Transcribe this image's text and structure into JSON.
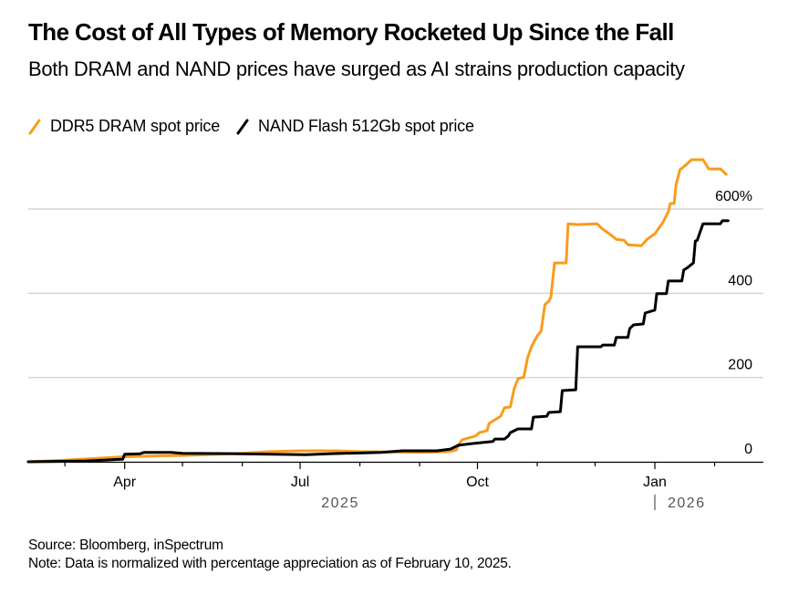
{
  "header": {
    "title": "The Cost of All Types of Memory Rocketed Up Since the Fall",
    "subtitle": "Both DRAM and NAND prices have surged as AI strains production capacity"
  },
  "legend": [
    {
      "label": "DDR5 DRAM spot price",
      "color": "#F89C1C"
    },
    {
      "label": "NAND Flash 512Gb spot price",
      "color": "#000000"
    }
  ],
  "footer": {
    "source": "Source: Bloomberg, inSpectrum",
    "note": "Note: Data is normalized with percentage appreciation as of February 10, 2025."
  },
  "chart_data": {
    "type": "line",
    "title": "The Cost of All Types of Memory Rocketed Up Since the Fall",
    "subtitle": "Both DRAM and NAND prices have surged as AI strains production capacity",
    "xlabel": "",
    "ylabel": "",
    "x_range": [
      "2025-02-10",
      "2026-02-28"
    ],
    "ylim": [
      0,
      700
    ],
    "y_ticks": [
      {
        "value": 0,
        "label": "0"
      },
      {
        "value": 200,
        "label": "200"
      },
      {
        "value": 400,
        "label": "400"
      },
      {
        "value": 600,
        "label": "600%"
      }
    ],
    "x_ticks": [
      {
        "date": "2025-03-01",
        "label": ""
      },
      {
        "date": "2025-04-01",
        "label": "Apr"
      },
      {
        "date": "2025-05-01",
        "label": ""
      },
      {
        "date": "2025-06-01",
        "label": ""
      },
      {
        "date": "2025-07-01",
        "label": "Jul"
      },
      {
        "date": "2025-08-01",
        "label": ""
      },
      {
        "date": "2025-09-01",
        "label": ""
      },
      {
        "date": "2025-10-01",
        "label": "Oct"
      },
      {
        "date": "2025-11-01",
        "label": ""
      },
      {
        "date": "2025-12-01",
        "label": ""
      },
      {
        "date": "2026-01-01",
        "label": "Jan"
      },
      {
        "date": "2026-02-01",
        "label": ""
      }
    ],
    "year_labels": [
      {
        "date": "2025-07-01",
        "label": "2025",
        "separator": false
      },
      {
        "date": "2026-01-01",
        "label": "2026",
        "separator": true
      }
    ],
    "grid": true,
    "legend_position": "top-left",
    "y_axis_side": "right",
    "series": [
      {
        "name": "DDR5 DRAM spot price",
        "color": "#F89C1C",
        "points": [
          [
            "2025-02-10",
            0
          ],
          [
            "2025-03-01",
            4
          ],
          [
            "2025-04-01",
            12
          ],
          [
            "2025-04-20",
            14
          ],
          [
            "2025-05-01",
            15
          ],
          [
            "2025-06-01",
            20
          ],
          [
            "2025-06-15",
            24
          ],
          [
            "2025-07-01",
            26
          ],
          [
            "2025-07-20",
            26
          ],
          [
            "2025-08-01",
            24
          ],
          [
            "2025-08-20",
            23
          ],
          [
            "2025-09-01",
            22
          ],
          [
            "2025-09-16",
            24
          ],
          [
            "2025-09-20",
            28
          ],
          [
            "2025-09-21",
            39
          ],
          [
            "2025-09-23",
            52
          ],
          [
            "2025-09-30",
            61
          ],
          [
            "2025-10-02",
            69
          ],
          [
            "2025-10-06",
            74
          ],
          [
            "2025-10-07",
            91
          ],
          [
            "2025-10-13",
            108
          ],
          [
            "2025-10-15",
            128
          ],
          [
            "2025-10-18",
            130
          ],
          [
            "2025-10-20",
            173
          ],
          [
            "2025-10-22",
            197
          ],
          [
            "2025-10-25",
            201
          ],
          [
            "2025-10-27",
            247
          ],
          [
            "2025-10-29",
            273
          ],
          [
            "2025-11-01",
            299
          ],
          [
            "2025-11-03",
            310
          ],
          [
            "2025-11-05",
            373
          ],
          [
            "2025-11-07",
            381
          ],
          [
            "2025-11-08",
            390
          ],
          [
            "2025-11-10",
            472
          ],
          [
            "2025-11-16",
            472
          ],
          [
            "2025-11-17",
            565
          ],
          [
            "2025-11-22",
            563
          ],
          [
            "2025-12-02",
            565
          ],
          [
            "2025-12-05",
            552
          ],
          [
            "2025-12-09",
            539
          ],
          [
            "2025-12-12",
            528
          ],
          [
            "2025-12-16",
            526
          ],
          [
            "2025-12-18",
            515
          ],
          [
            "2025-12-25",
            513
          ],
          [
            "2025-12-28",
            528
          ],
          [
            "2026-01-01",
            541
          ],
          [
            "2026-01-05",
            567
          ],
          [
            "2026-01-08",
            593
          ],
          [
            "2026-01-09",
            613
          ],
          [
            "2026-01-11",
            613
          ],
          [
            "2026-01-12",
            658
          ],
          [
            "2026-01-14",
            693
          ],
          [
            "2026-01-17",
            704
          ],
          [
            "2026-01-20",
            717
          ],
          [
            "2026-01-26",
            717
          ],
          [
            "2026-01-29",
            695
          ],
          [
            "2026-02-04",
            695
          ],
          [
            "2026-02-07",
            682
          ]
        ]
      },
      {
        "name": "NAND Flash 512Gb spot price",
        "color": "#000000",
        "points": [
          [
            "2025-02-10",
            0
          ],
          [
            "2025-03-12",
            2
          ],
          [
            "2025-03-31",
            6
          ],
          [
            "2025-04-01",
            18
          ],
          [
            "2025-04-09",
            19
          ],
          [
            "2025-04-11",
            22
          ],
          [
            "2025-04-25",
            22
          ],
          [
            "2025-05-01",
            20
          ],
          [
            "2025-05-30",
            19
          ],
          [
            "2025-07-04",
            17
          ],
          [
            "2025-07-16",
            19
          ],
          [
            "2025-08-12",
            22
          ],
          [
            "2025-08-23",
            26
          ],
          [
            "2025-09-10",
            26
          ],
          [
            "2025-09-17",
            30
          ],
          [
            "2025-09-21",
            39
          ],
          [
            "2025-09-28",
            43
          ],
          [
            "2025-10-09",
            48
          ],
          [
            "2025-10-10",
            54
          ],
          [
            "2025-10-15",
            54
          ],
          [
            "2025-10-17",
            61
          ],
          [
            "2025-10-18",
            69
          ],
          [
            "2025-10-22",
            78
          ],
          [
            "2025-10-29",
            78
          ],
          [
            "2025-10-30",
            106
          ],
          [
            "2025-11-06",
            108
          ],
          [
            "2025-11-07",
            117
          ],
          [
            "2025-11-13",
            119
          ],
          [
            "2025-11-14",
            169
          ],
          [
            "2025-11-21",
            171
          ],
          [
            "2025-11-22",
            273
          ],
          [
            "2025-12-04",
            273
          ],
          [
            "2025-12-05",
            277
          ],
          [
            "2025-12-11",
            277
          ],
          [
            "2025-12-12",
            295
          ],
          [
            "2025-12-18",
            295
          ],
          [
            "2025-12-19",
            316
          ],
          [
            "2025-12-21",
            325
          ],
          [
            "2025-12-26",
            327
          ],
          [
            "2025-12-27",
            353
          ],
          [
            "2026-01-01",
            360
          ],
          [
            "2026-01-02",
            399
          ],
          [
            "2026-01-07",
            399
          ],
          [
            "2026-01-08",
            429
          ],
          [
            "2026-01-15",
            429
          ],
          [
            "2026-01-16",
            455
          ],
          [
            "2026-01-18",
            461
          ],
          [
            "2026-01-21",
            472
          ],
          [
            "2026-01-22",
            524
          ],
          [
            "2026-01-23",
            526
          ],
          [
            "2026-01-26",
            565
          ],
          [
            "2026-02-04",
            565
          ],
          [
            "2026-02-05",
            572
          ],
          [
            "2026-02-08",
            572
          ]
        ]
      }
    ]
  }
}
